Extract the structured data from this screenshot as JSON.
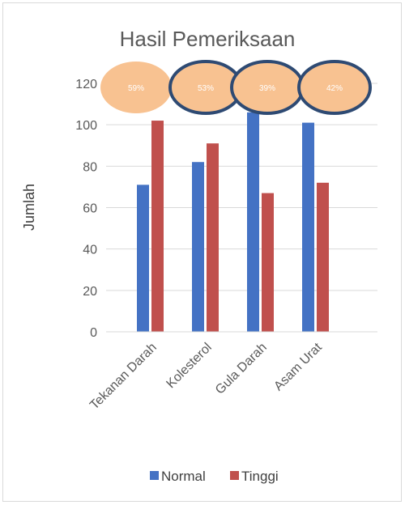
{
  "chart_data": {
    "type": "bar",
    "title": "Hasil Pemeriksaan",
    "xlabel": "",
    "ylabel": "Jumlah",
    "categories": [
      "Tekanan Darah",
      "Kolesterol",
      "Gula Darah",
      "Asam Urat"
    ],
    "series": [
      {
        "name": "Normal",
        "values": [
          71,
          82,
          106,
          101
        ],
        "color": "#4472c4"
      },
      {
        "name": "Tinggi",
        "values": [
          102,
          91,
          67,
          72
        ],
        "color": "#c0504d"
      }
    ],
    "ylim": [
      0,
      120
    ],
    "yticks": [
      "0",
      "20",
      "40",
      "60",
      "80",
      "100",
      "120"
    ],
    "grid": true,
    "legend_position": "bottom",
    "annotations": [
      {
        "label": "59%",
        "outlined": false
      },
      {
        "label": "53%",
        "outlined": true
      },
      {
        "label": "39%",
        "outlined": true
      },
      {
        "label": "42%",
        "outlined": true
      }
    ],
    "annotation_fill": "#f8c291",
    "annotation_outline": "#2e4a73"
  }
}
